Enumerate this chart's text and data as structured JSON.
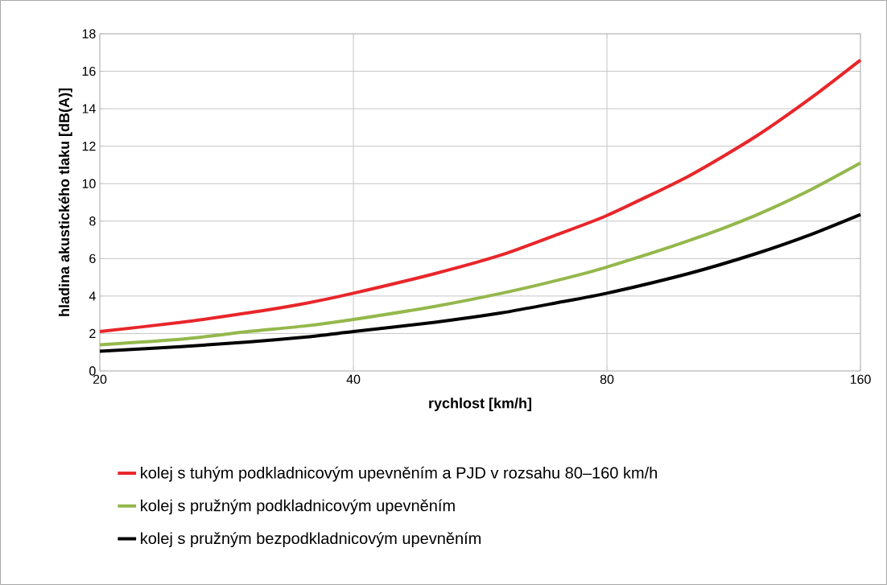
{
  "chart_data": {
    "type": "line",
    "xlabel": "rychlost [km/h]",
    "ylabel": "hladina akustického tlaku [dB(A)]",
    "log": "x",
    "xlim": [
      20,
      160
    ],
    "xticks": [
      20,
      40,
      80,
      160
    ],
    "ylim": [
      0,
      18
    ],
    "yticks": [
      0,
      2,
      4,
      6,
      8,
      10,
      12,
      14,
      16,
      18
    ],
    "grid": true,
    "legend": "bottom",
    "x": [
      20,
      25,
      30,
      35,
      40,
      50,
      60,
      70,
      80,
      100,
      120,
      140,
      160
    ],
    "series": [
      {
        "name": "kolej s tuhým podkladnicovým upevněním a PJD v rozsahu 80–160 km/h",
        "color": "#e8262a",
        "values": [
          2.1,
          2.6,
          3.1,
          3.6,
          4.15,
          5.2,
          6.2,
          7.3,
          8.3,
          10.4,
          12.5,
          14.6,
          16.6
        ]
      },
      {
        "name": "kolej s pružným podkladnicovým upevněním",
        "color": "#94b84c",
        "values": [
          1.4,
          1.7,
          2.1,
          2.4,
          2.75,
          3.45,
          4.15,
          4.85,
          5.55,
          6.95,
          8.3,
          9.7,
          11.1
        ]
      },
      {
        "name": "kolej s pružným bezpodkladnicovým upevněním",
        "color": "#000000",
        "values": [
          1.05,
          1.3,
          1.55,
          1.8,
          2.1,
          2.6,
          3.1,
          3.65,
          4.15,
          5.2,
          6.25,
          7.3,
          8.35
        ]
      }
    ]
  }
}
